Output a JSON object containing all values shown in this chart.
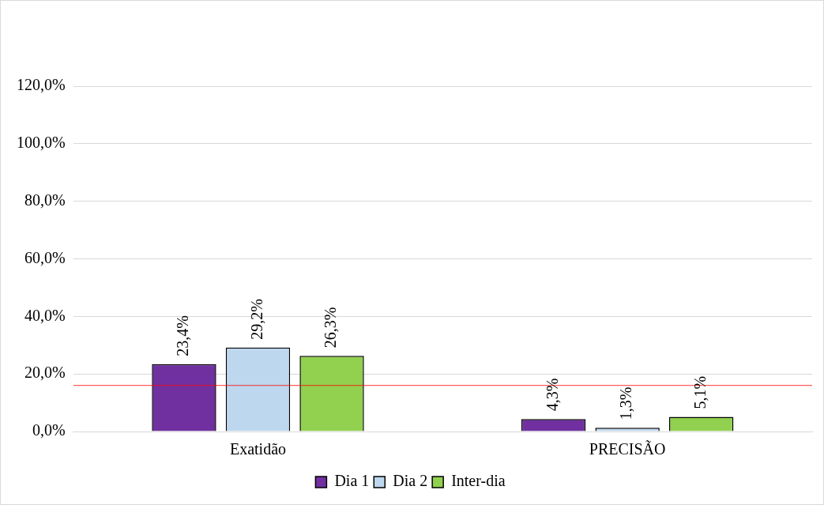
{
  "chart_data": {
    "type": "bar",
    "categories": [
      "Exatidão",
      "PRECISÃO"
    ],
    "series": [
      {
        "name": "Dia 1",
        "color": "#7030a0",
        "values": [
          23.4,
          4.3
        ],
        "value_labels": [
          "23,4%",
          "4,3%"
        ]
      },
      {
        "name": "Dia 2",
        "color": "#bdd7ee",
        "values": [
          29.2,
          1.3
        ],
        "value_labels": [
          "29,2%",
          "1,3%"
        ]
      },
      {
        "name": "Inter-dia",
        "color": "#92d050",
        "values": [
          26.3,
          5.1
        ],
        "value_labels": [
          "26,3%",
          "5,1%"
        ]
      }
    ],
    "ylim": [
      0,
      120
    ],
    "yticks": [
      {
        "value": 0,
        "label": "0,0%"
      },
      {
        "value": 20,
        "label": "20,0%"
      },
      {
        "value": 40,
        "label": "40,0%"
      },
      {
        "value": 60,
        "label": "60,0%"
      },
      {
        "value": 80,
        "label": "80,0%"
      },
      {
        "value": 100,
        "label": "100,0%"
      },
      {
        "value": 120,
        "label": "120,0%"
      }
    ],
    "grid": "y",
    "legend": "bottom",
    "ref_lines": [
      {
        "axis": "y",
        "value": 16,
        "color": "#ff0000"
      }
    ]
  }
}
